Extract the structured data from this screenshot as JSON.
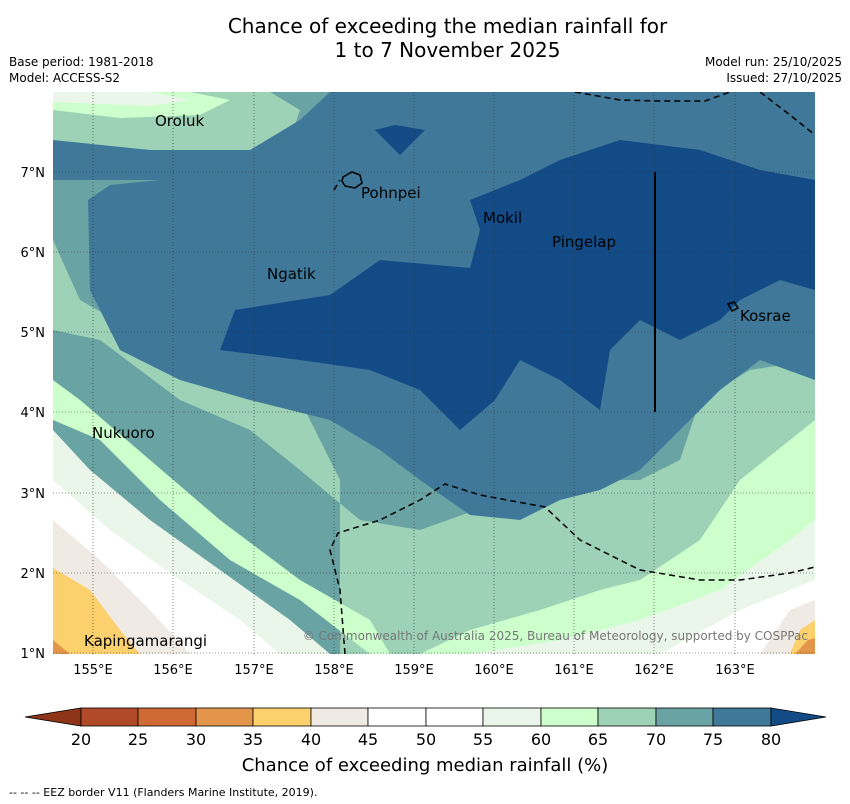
{
  "title": {
    "line1": "Chance of exceeding the median rainfall for",
    "line2": "1 to 7 November 2025"
  },
  "meta_left": {
    "base_period": "Base period: 1981-2018",
    "model": "Model: ACCESS-S2"
  },
  "meta_right": {
    "model_run": "Model run: 25/10/2025",
    "issued": "Issued: 27/10/2025"
  },
  "axes": {
    "lon_ticks": [
      "155°E",
      "156°E",
      "157°E",
      "158°E",
      "159°E",
      "160°E",
      "161°E",
      "162°E",
      "163°E"
    ],
    "lat_ticks": [
      "7°N",
      "6°N",
      "5°N",
      "4°N",
      "3°N",
      "2°N",
      "1°N"
    ]
  },
  "places": {
    "oroluk": "Oroluk",
    "pohnpei": "Pohnpei",
    "mokil": "Mokil",
    "pingelap": "Pingelap",
    "ngatik": "Ngatik",
    "kosrae": "Kosrae",
    "nukuoro": "Nukuoro",
    "kapingamarangi": "Kapingamarangi"
  },
  "copyright": "© Commonwealth of Australia 2025, Bureau of Meteorology, supported by COSPPac",
  "colorbar": {
    "ticks": [
      "20",
      "25",
      "30",
      "35",
      "40",
      "45",
      "50",
      "55",
      "60",
      "65",
      "70",
      "75",
      "80"
    ],
    "title": "Chance of exceeding median rainfall (%)",
    "colors": [
      "#b04a28",
      "#cf6a34",
      "#e3954a",
      "#fdd06e",
      "#efebe4",
      "#ffffff",
      "#ffffff",
      "#ebf6ea",
      "#ccffcc",
      "#9dd2b7",
      "#6aa3a3",
      "#3f7899",
      "#134b87"
    ]
  },
  "legend_footer": "--  --  -- EEZ border V11 (Flanders Marine Institute, 2019)."
}
